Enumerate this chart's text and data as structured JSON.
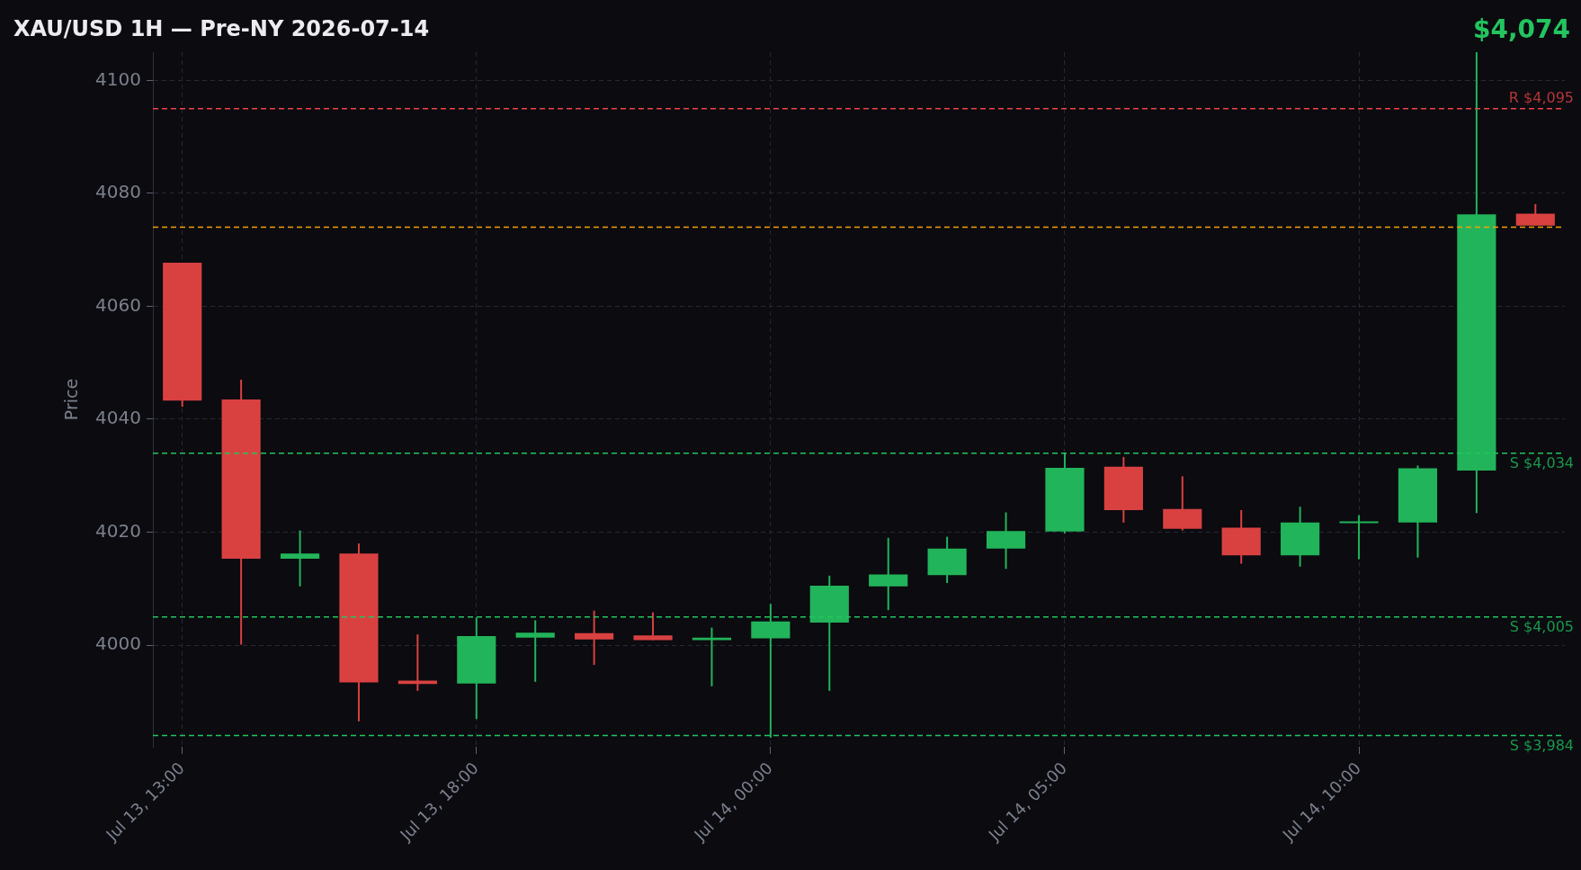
{
  "chart_data": {
    "type": "candlestick",
    "title": "XAU/USD 1H — Pre-NY 2026-07-14",
    "ylabel": "Price",
    "categories": [
      "Jul 13, 13:00",
      null,
      null,
      null,
      null,
      "Jul 13, 18:00",
      null,
      null,
      null,
      null,
      "Jul 14, 00:00",
      null,
      null,
      null,
      null,
      "Jul 14, 05:00",
      null,
      null,
      null,
      null,
      "Jul 14, 10:00",
      null,
      null,
      null
    ],
    "ohlc": [
      [
        4067.7,
        4067.7,
        4042.2,
        4043.3
      ],
      [
        4043.5,
        4047.0,
        4000.1,
        4015.3
      ],
      [
        4015.3,
        4020.3,
        4010.4,
        4016.2
      ],
      [
        4016.2,
        4018.0,
        3986.5,
        3993.4
      ],
      [
        3993.7,
        4001.9,
        3991.9,
        3993.1
      ],
      [
        3993.2,
        4004.9,
        3986.9,
        4001.6
      ],
      [
        4001.3,
        4004.4,
        3993.5,
        4002.2
      ],
      [
        4002.1,
        4006.1,
        3996.5,
        4001.0
      ],
      [
        4001.7,
        4005.8,
        4000.9,
        4000.9
      ],
      [
        4000.9,
        4003.1,
        3992.7,
        4001.3
      ],
      [
        4001.2,
        4007.3,
        3983.6,
        4004.2
      ],
      [
        4004.0,
        4012.3,
        3991.9,
        4010.5
      ],
      [
        4010.4,
        4019.0,
        4006.2,
        4012.5
      ],
      [
        4012.4,
        4019.2,
        4011.0,
        4017.1
      ],
      [
        4017.1,
        4023.5,
        4013.5,
        4020.2
      ],
      [
        4020.1,
        4034.1,
        4019.8,
        4031.4
      ],
      [
        4031.6,
        4033.3,
        4021.7,
        4023.9
      ],
      [
        4024.1,
        4029.9,
        4020.3,
        4020.6
      ],
      [
        4020.8,
        4023.9,
        4014.4,
        4015.9
      ],
      [
        4015.9,
        4024.5,
        4013.9,
        4021.7
      ],
      [
        4021.6,
        4023.0,
        4015.2,
        4021.9
      ],
      [
        4021.7,
        4031.8,
        4015.5,
        4031.3
      ],
      [
        4030.9,
        4105.0,
        4023.4,
        4076.3
      ],
      [
        4076.4,
        4078.1,
        4074.3,
        4074.3
      ]
    ],
    "colors": [
      "#d94141",
      "#d94141",
      "#22b45a",
      "#d94141",
      "#d94141",
      "#22b45a",
      "#22b45a",
      "#d94141",
      "#d94141",
      "#22b45a",
      "#22b45a",
      "#22b45a",
      "#22b45a",
      "#22b45a",
      "#22b45a",
      "#22b45a",
      "#d94141",
      "#d94141",
      "#d94141",
      "#22b45a",
      "#22b45a",
      "#22b45a",
      "#22b45a",
      "#d94141"
    ],
    "ylim": [
      3982,
      4105
    ],
    "yticks": [
      4000,
      4020,
      4040,
      4060,
      4080,
      4100
    ],
    "grid": true,
    "ref_lines": [
      {
        "axis": "y",
        "value": 4095,
        "label": "R $4,095",
        "color": "#ef4444",
        "line_style": "dashed"
      },
      {
        "axis": "y",
        "value": 4074,
        "color": "#f59e0b",
        "line_style": "dashed"
      },
      {
        "axis": "y",
        "value": 4034,
        "label": "S $4,034",
        "color": "#22c55e",
        "line_style": "dashed"
      },
      {
        "axis": "y",
        "value": 4005,
        "label": "S $4,005",
        "color": "#22c55e",
        "line_style": "dashed"
      },
      {
        "axis": "y",
        "value": 3984,
        "label": "S $3,984",
        "color": "#22c55e",
        "line_style": "dashed"
      }
    ],
    "annotations": [
      "$4,074"
    ]
  }
}
